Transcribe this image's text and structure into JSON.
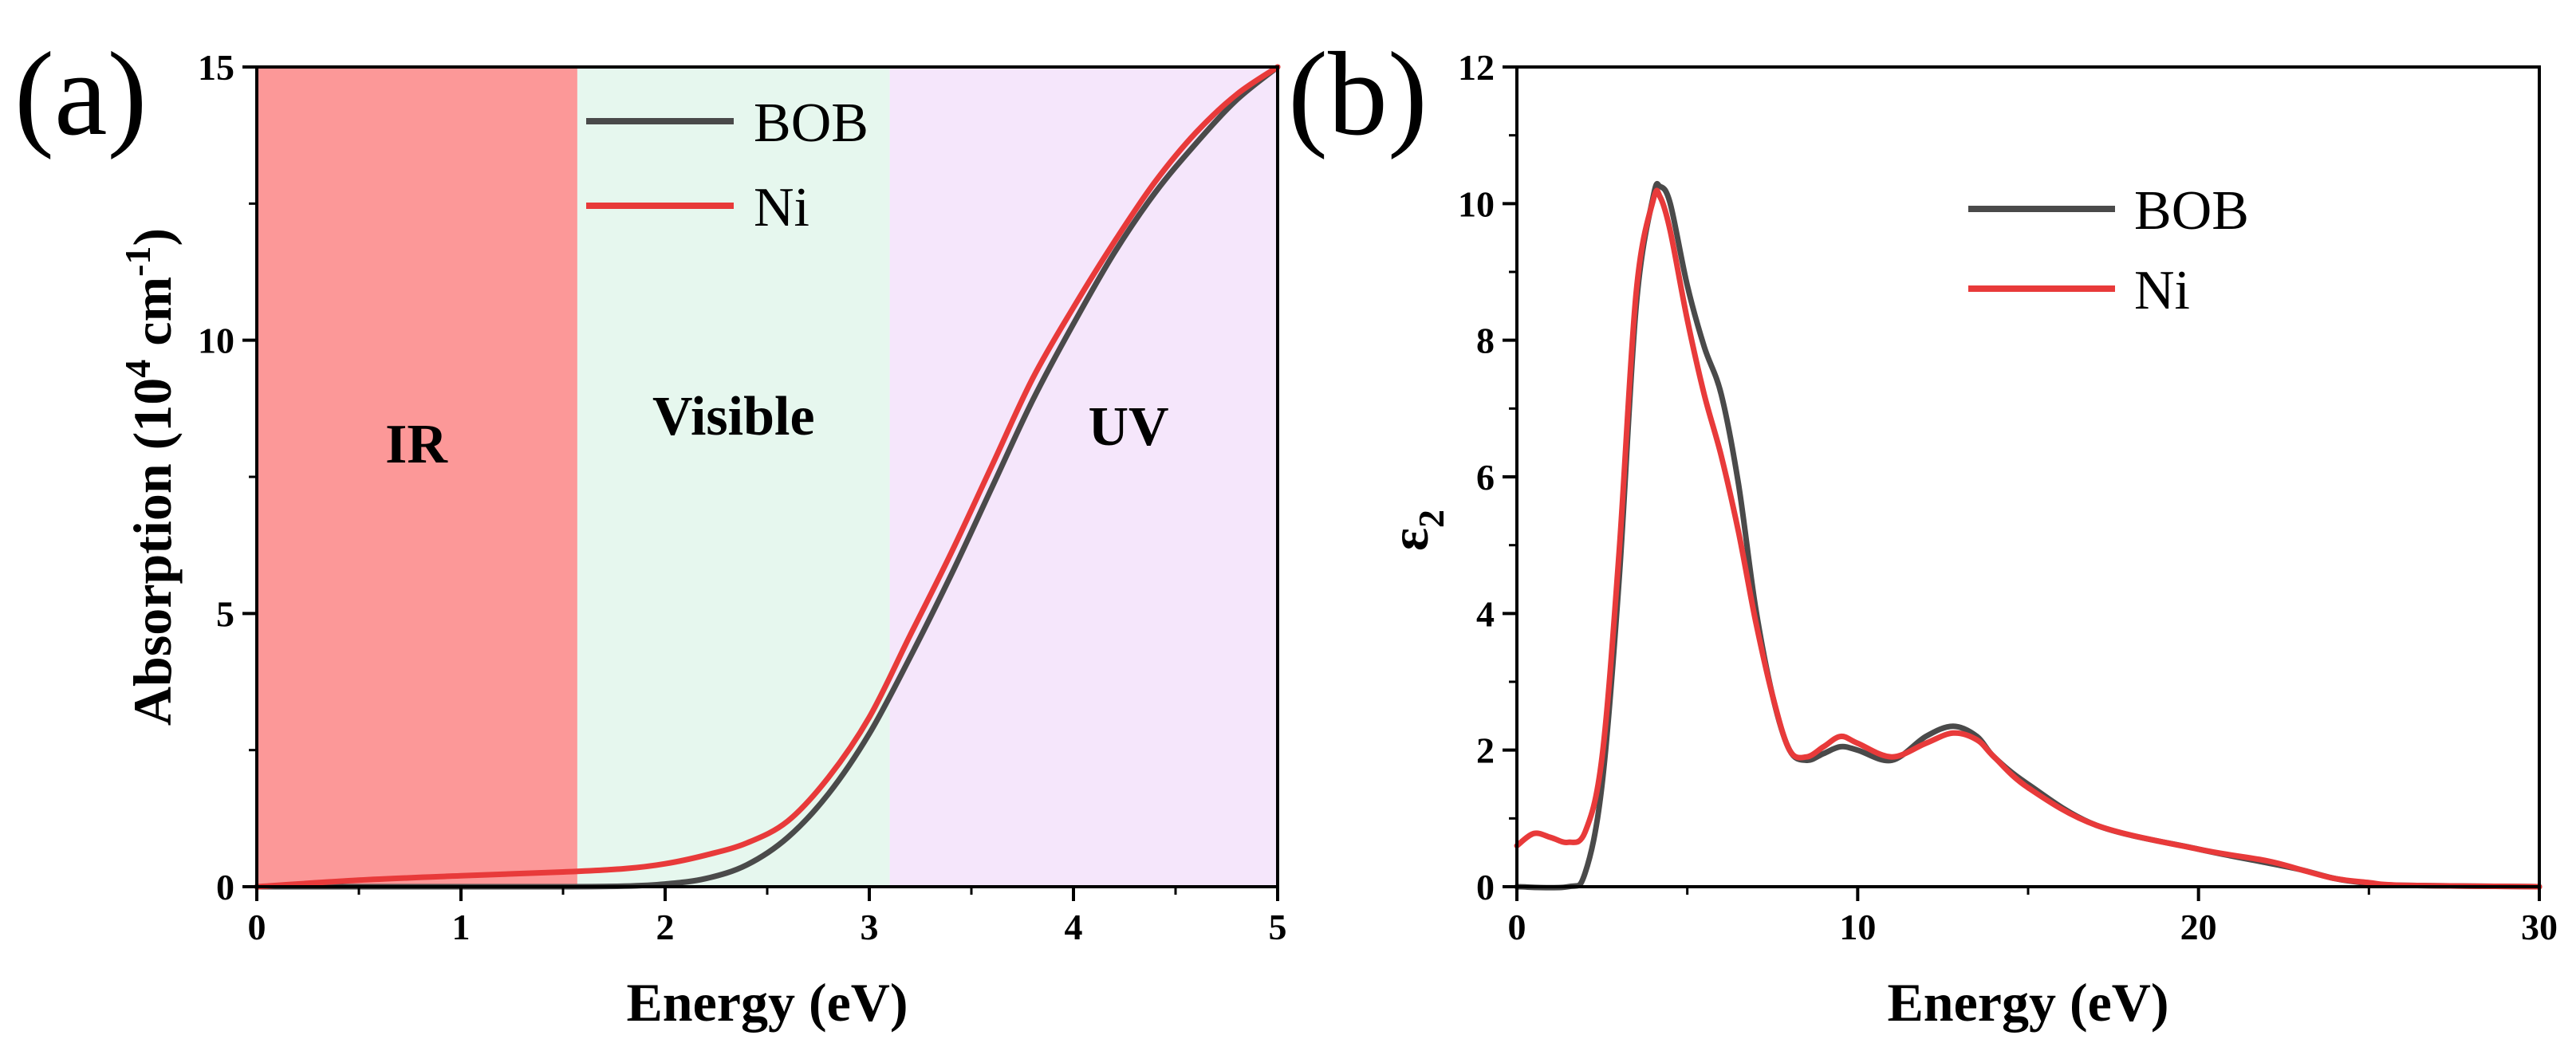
{
  "chart_data": [
    {
      "panel": "(a)",
      "type": "line",
      "xlabel": "Energy (eV)",
      "ylabel": {
        "base": "Absorption (10",
        "exp": "4",
        "mid": " cm",
        "exp2": "-1",
        "end": ")"
      },
      "xlim": [
        0,
        5
      ],
      "ylim": [
        0,
        15
      ],
      "xticks": [
        0,
        1,
        2,
        3,
        4,
        5
      ],
      "yticks": [
        0,
        5,
        10,
        15
      ],
      "regions": [
        {
          "label": "IR",
          "from": 0,
          "to": 1.57,
          "color": "#fc9898"
        },
        {
          "label": "Visible",
          "from": 1.57,
          "to": 3.1,
          "color": "#e6f7ee"
        },
        {
          "label": "UV",
          "from": 3.1,
          "to": 5,
          "color": "#f5e6fb"
        }
      ],
      "series": [
        {
          "name": "BOB",
          "color": "#4a4a4a",
          "x": [
            0,
            0.5,
            1,
            1.5,
            1.8,
            2.0,
            2.2,
            2.4,
            2.6,
            2.8,
            3.0,
            3.2,
            3.4,
            3.6,
            3.8,
            4.0,
            4.2,
            4.4,
            4.6,
            4.8,
            5.0
          ],
          "y": [
            0,
            0,
            0,
            0,
            0.01,
            0.05,
            0.15,
            0.4,
            0.9,
            1.7,
            2.8,
            4.2,
            5.7,
            7.3,
            8.9,
            10.3,
            11.6,
            12.7,
            13.6,
            14.4,
            15.0
          ]
        },
        {
          "name": "Ni",
          "color": "#e83a3a",
          "x": [
            0,
            0.5,
            1,
            1.5,
            1.8,
            2.0,
            2.2,
            2.4,
            2.6,
            2.8,
            3.0,
            3.2,
            3.4,
            3.6,
            3.8,
            4.0,
            4.2,
            4.4,
            4.6,
            4.8,
            5.0
          ],
          "y": [
            0,
            0.12,
            0.2,
            0.27,
            0.33,
            0.42,
            0.58,
            0.8,
            1.2,
            2.0,
            3.1,
            4.6,
            6.1,
            7.7,
            9.3,
            10.6,
            11.8,
            12.9,
            13.8,
            14.5,
            15.0
          ]
        }
      ]
    },
    {
      "panel": "(b)",
      "type": "line",
      "xlabel": "Energy (eV)",
      "ylabel": {
        "base": "ε",
        "sub": "2"
      },
      "xlim": [
        0,
        30
      ],
      "ylim": [
        0,
        12
      ],
      "xticks": [
        0,
        10,
        20,
        30
      ],
      "yticks": [
        0,
        2,
        4,
        6,
        8,
        10,
        12
      ],
      "series": [
        {
          "name": "BOB",
          "color": "#4a4a4a",
          "x": [
            0,
            1.5,
            2.0,
            2.5,
            3.0,
            3.5,
            4.0,
            4.2,
            4.5,
            5.0,
            5.5,
            6.0,
            6.5,
            7.0,
            7.5,
            8.0,
            8.5,
            9.0,
            9.5,
            10.0,
            11.0,
            12.0,
            12.8,
            13.5,
            14.0,
            15.0,
            17.0,
            20.0,
            22.0,
            23.0,
            24.0,
            25.0,
            26.0,
            30.0
          ],
          "y": [
            0,
            0,
            0.2,
            1.5,
            4.5,
            8.5,
            10.1,
            10.25,
            10.0,
            8.8,
            7.9,
            7.2,
            5.9,
            4.1,
            2.8,
            2.0,
            1.85,
            1.95,
            2.05,
            2.0,
            1.85,
            2.2,
            2.35,
            2.2,
            1.9,
            1.5,
            0.9,
            0.55,
            0.35,
            0.25,
            0.12,
            0.05,
            0.02,
            0
          ]
        },
        {
          "name": "Ni",
          "color": "#e83a3a",
          "x": [
            0,
            0.5,
            1.0,
            1.5,
            2.0,
            2.5,
            3.0,
            3.5,
            4.0,
            4.2,
            4.5,
            5.0,
            5.5,
            6.0,
            6.5,
            7.0,
            7.5,
            8.0,
            8.5,
            9.0,
            9.5,
            10.0,
            11.0,
            12.0,
            12.8,
            13.5,
            14.0,
            15.0,
            17.0,
            20.0,
            22.0,
            23.0,
            24.0,
            25.0,
            26.0,
            30.0
          ],
          "y": [
            0.6,
            0.78,
            0.72,
            0.65,
            0.8,
            1.9,
            4.9,
            8.7,
            10.05,
            10.1,
            9.6,
            8.3,
            7.2,
            6.3,
            5.2,
            3.9,
            2.8,
            2.0,
            1.9,
            2.05,
            2.2,
            2.1,
            1.9,
            2.1,
            2.25,
            2.15,
            1.9,
            1.45,
            0.9,
            0.55,
            0.38,
            0.25,
            0.12,
            0.06,
            0.02,
            0
          ]
        }
      ]
    }
  ]
}
